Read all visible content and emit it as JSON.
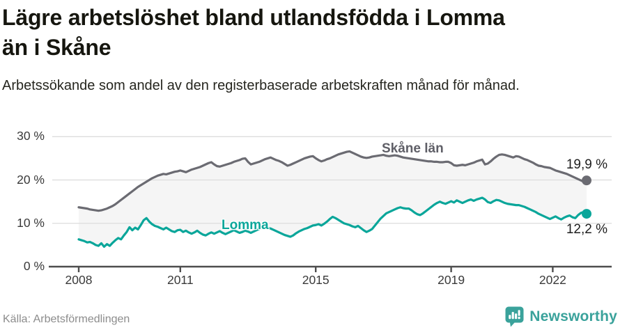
{
  "header": {
    "title_line1": "Lägre arbetslöshet bland utlandsfödda i Lomma",
    "title_line2": "än i Skåne",
    "subtitle": "Arbetssökande som andel av den registerbaserade arbetskraften månad för månad."
  },
  "footer": {
    "source": "Källa: Arbetsförmedlingen",
    "brand": "Newsworthy"
  },
  "colors": {
    "skane_line": "#6b6b72",
    "lomma_line": "#0aa69a",
    "band_fill": "#f5f5f5",
    "gridline": "#dcdcdc",
    "axis": "#4d4d4d",
    "brand_teal": "#3aa29b"
  },
  "chart_data": {
    "type": "line",
    "title": "Lägre arbetslöshet bland utlandsfödda i Lomma än i Skåne",
    "subtitle": "Arbetssökande som andel av den registerbaserade arbetskraften månad för månad.",
    "unit": "%",
    "x_start_year": 2008,
    "x_start_month": 1,
    "x_step_months": 1,
    "x_tick_years": [
      2008,
      2011,
      2015,
      2019,
      2022
    ],
    "x_tick_labels": [
      "2008",
      "2011",
      "2015",
      "2019",
      "2022"
    ],
    "y_ticks": [
      0,
      10,
      20,
      30
    ],
    "y_tick_labels": [
      "0 %",
      "10 %",
      "20 %",
      "30 %"
    ],
    "ylim": [
      0,
      32
    ],
    "grid": true,
    "legend_position": "inline-labels",
    "band_between_series": true,
    "series": [
      {
        "name": "Skåne län",
        "color": "#6b6b72",
        "end_label": "19,9 %",
        "end_value": 19.9,
        "values": [
          13.7,
          13.6,
          13.5,
          13.4,
          13.2,
          13.1,
          13.0,
          12.9,
          13.0,
          13.2,
          13.4,
          13.7,
          14.0,
          14.4,
          14.9,
          15.4,
          15.9,
          16.4,
          16.9,
          17.4,
          17.9,
          18.4,
          18.8,
          19.2,
          19.6,
          20.0,
          20.4,
          20.7,
          21.0,
          21.2,
          21.4,
          21.3,
          21.5,
          21.7,
          21.9,
          22.0,
          22.2,
          22.0,
          21.8,
          22.1,
          22.4,
          22.6,
          22.8,
          23.0,
          23.3,
          23.6,
          23.9,
          24.1,
          23.6,
          23.2,
          23.1,
          23.3,
          23.5,
          23.7,
          23.9,
          24.2,
          24.4,
          24.6,
          24.9,
          25.0,
          24.2,
          23.6,
          23.8,
          24.0,
          24.2,
          24.5,
          24.8,
          25.0,
          25.2,
          24.9,
          24.6,
          24.4,
          24.1,
          23.7,
          23.3,
          23.5,
          23.8,
          24.1,
          24.4,
          24.7,
          25.0,
          25.2,
          25.4,
          25.5,
          25.0,
          24.6,
          24.3,
          24.5,
          24.8,
          25.0,
          25.3,
          25.6,
          25.9,
          26.1,
          26.3,
          26.5,
          26.6,
          26.3,
          26.0,
          25.7,
          25.4,
          25.2,
          25.1,
          25.2,
          25.4,
          25.5,
          25.6,
          25.7,
          25.8,
          25.6,
          25.5,
          25.6,
          25.7,
          25.6,
          25.4,
          25.2,
          25.1,
          25.0,
          24.9,
          24.8,
          24.7,
          24.6,
          24.5,
          24.4,
          24.3,
          24.3,
          24.2,
          24.2,
          24.1,
          24.1,
          24.2,
          24.2,
          23.9,
          23.4,
          23.3,
          23.4,
          23.5,
          23.4,
          23.6,
          23.8,
          24.0,
          24.3,
          24.5,
          24.7,
          23.6,
          23.8,
          24.3,
          24.9,
          25.4,
          25.8,
          25.9,
          25.8,
          25.6,
          25.4,
          25.2,
          25.5,
          25.4,
          25.1,
          24.8,
          24.6,
          24.3,
          24.0,
          23.6,
          23.3,
          23.2,
          23.0,
          22.9,
          22.8,
          22.5,
          22.2,
          22.0,
          21.8,
          21.6,
          21.4,
          21.1,
          20.8,
          20.5,
          20.2,
          19.9,
          19.6,
          19.9
        ]
      },
      {
        "name": "Lomma",
        "color": "#0aa69a",
        "end_label": "12,2 %",
        "end_value": 12.2,
        "values": [
          6.3,
          6.1,
          5.9,
          5.6,
          5.7,
          5.4,
          5.0,
          4.8,
          5.4,
          4.6,
          5.2,
          4.8,
          5.5,
          6.1,
          6.6,
          6.3,
          7.2,
          8.0,
          9.1,
          8.4,
          9.0,
          8.6,
          9.6,
          10.7,
          11.2,
          10.4,
          9.8,
          9.4,
          9.2,
          8.9,
          8.6,
          9.0,
          8.6,
          8.2,
          8.0,
          8.4,
          8.5,
          8.0,
          8.3,
          7.9,
          7.6,
          7.9,
          8.3,
          7.8,
          7.4,
          7.2,
          7.6,
          7.9,
          7.6,
          7.9,
          8.2,
          7.8,
          7.5,
          7.8,
          8.1,
          8.4,
          8.1,
          7.8,
          8.0,
          8.3,
          8.1,
          7.8,
          8.1,
          8.4,
          8.7,
          9.0,
          9.3,
          9.0,
          8.8,
          8.5,
          8.2,
          7.9,
          7.6,
          7.3,
          7.1,
          6.9,
          7.2,
          7.7,
          8.1,
          8.4,
          8.7,
          8.9,
          9.2,
          9.5,
          9.6,
          9.8,
          9.5,
          9.9,
          10.4,
          11.0,
          11.5,
          11.2,
          10.8,
          10.4,
          10.0,
          9.8,
          9.6,
          9.3,
          9.1,
          9.4,
          8.9,
          8.4,
          8.0,
          8.3,
          8.7,
          9.5,
          10.3,
          11.1,
          11.7,
          12.3,
          12.6,
          12.9,
          13.2,
          13.5,
          13.7,
          13.5,
          13.4,
          13.4,
          13.0,
          12.5,
          12.1,
          11.9,
          12.3,
          12.8,
          13.3,
          13.8,
          14.3,
          14.7,
          15.0,
          14.7,
          14.5,
          14.8,
          15.1,
          14.8,
          15.3,
          15.0,
          14.7,
          15.0,
          15.3,
          15.5,
          15.2,
          15.5,
          15.7,
          15.9,
          15.5,
          14.9,
          14.7,
          15.1,
          15.4,
          15.3,
          15.0,
          14.7,
          14.5,
          14.4,
          14.3,
          14.2,
          14.2,
          14.0,
          13.8,
          13.5,
          13.2,
          12.9,
          12.6,
          12.2,
          11.9,
          11.6,
          11.3,
          11.0,
          11.3,
          11.6,
          11.2,
          10.9,
          11.3,
          11.6,
          11.8,
          11.4,
          11.2,
          11.9,
          12.4,
          12.6,
          12.2
        ]
      }
    ]
  }
}
